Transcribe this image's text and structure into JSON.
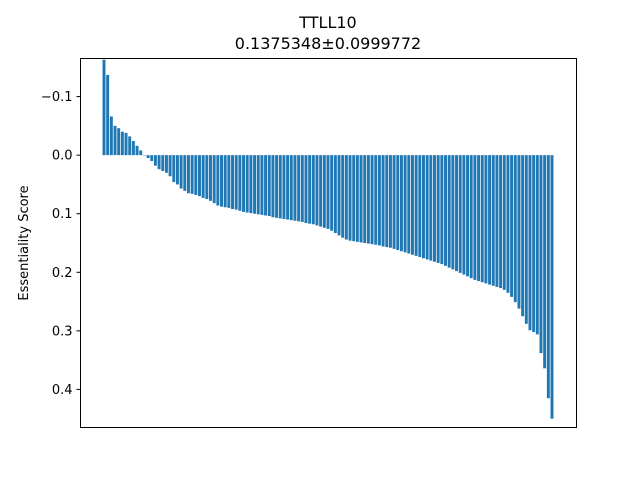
{
  "chart_data": {
    "type": "bar",
    "title": "TTLL10",
    "subtitle": "0.1375348±0.0999772",
    "xlabel": "",
    "ylabel": "Essentiality Score",
    "y_inverted": true,
    "ylim": [
      0.465,
      -0.165
    ],
    "yticks": [
      -0.1,
      0.0,
      0.1,
      0.2,
      0.3,
      0.4
    ],
    "ytick_labels": [
      "−0.1",
      "0.0",
      "0.1",
      "0.2",
      "0.3",
      "0.4"
    ],
    "grid": false,
    "legend": "none",
    "bar_color": "#1f77b4",
    "values": [
      -0.163,
      -0.137,
      -0.066,
      -0.05,
      -0.046,
      -0.04,
      -0.038,
      -0.032,
      -0.024,
      -0.016,
      -0.008,
      0.0,
      0.005,
      0.01,
      0.018,
      0.024,
      0.027,
      0.03,
      0.036,
      0.046,
      0.05,
      0.057,
      0.061,
      0.065,
      0.066,
      0.068,
      0.07,
      0.073,
      0.075,
      0.078,
      0.082,
      0.086,
      0.088,
      0.089,
      0.09,
      0.092,
      0.093,
      0.095,
      0.097,
      0.098,
      0.099,
      0.1,
      0.101,
      0.102,
      0.103,
      0.104,
      0.106,
      0.107,
      0.108,
      0.109,
      0.11,
      0.111,
      0.112,
      0.113,
      0.114,
      0.116,
      0.117,
      0.118,
      0.12,
      0.122,
      0.124,
      0.126,
      0.129,
      0.133,
      0.137,
      0.141,
      0.144,
      0.146,
      0.147,
      0.148,
      0.149,
      0.15,
      0.151,
      0.152,
      0.153,
      0.154,
      0.156,
      0.157,
      0.158,
      0.16,
      0.162,
      0.164,
      0.166,
      0.168,
      0.17,
      0.172,
      0.174,
      0.176,
      0.178,
      0.18,
      0.182,
      0.184,
      0.186,
      0.189,
      0.192,
      0.195,
      0.198,
      0.201,
      0.204,
      0.207,
      0.21,
      0.213,
      0.215,
      0.217,
      0.219,
      0.221,
      0.223,
      0.225,
      0.227,
      0.23,
      0.235,
      0.242,
      0.251,
      0.262,
      0.275,
      0.288,
      0.299,
      0.302,
      0.306,
      0.338,
      0.364,
      0.415,
      0.45
    ]
  }
}
